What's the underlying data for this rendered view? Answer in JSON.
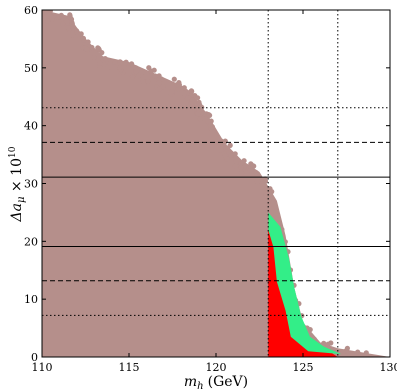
{
  "chart_data": {
    "type": "scatter",
    "title": "",
    "xlabel_main": "m",
    "xlabel_sub": "h",
    "xlabel_unit": "(GeV)",
    "ylabel_main": "Δa",
    "ylabel_sub": "μ",
    "ylabel_tail": " × 10",
    "ylabel_exp": "10",
    "xlim": [
      110,
      130
    ],
    "ylim": [
      0,
      60
    ],
    "xticks": [
      "110",
      "115",
      "120",
      "125",
      "130"
    ],
    "yticks": [
      "0",
      "10",
      "20",
      "30",
      "40",
      "50",
      "60"
    ],
    "grid": false,
    "colors": {
      "all_points": "#b58f8b",
      "region_red": "#ff0000",
      "region_green": "#33ee88",
      "lines": "#000000"
    },
    "series": [
      {
        "color": "#b58f8b",
        "envelope": [
          [
            110,
            60
          ],
          [
            111.5,
            59
          ],
          [
            112.5,
            55
          ],
          [
            113.5,
            52
          ],
          [
            115,
            51
          ],
          [
            116.5,
            49
          ],
          [
            118,
            47
          ],
          [
            118.5,
            46
          ],
          [
            119.5,
            42
          ],
          [
            120.5,
            37
          ],
          [
            121.5,
            34
          ],
          [
            122.5,
            32
          ],
          [
            123.5,
            27
          ],
          [
            124,
            21
          ],
          [
            124.5,
            12
          ],
          [
            125,
            6
          ],
          [
            126,
            2.5
          ],
          [
            127,
            1.5
          ],
          [
            129,
            0.5
          ],
          [
            130,
            0
          ]
        ]
      },
      {
        "color": "#ff0000",
        "region": [
          [
            123.0,
            25
          ],
          [
            123.6,
            22
          ],
          [
            124.0,
            16
          ],
          [
            124.3,
            10
          ],
          [
            124.8,
            5
          ],
          [
            125.5,
            3
          ],
          [
            126.5,
            1
          ],
          [
            127.0,
            0
          ],
          [
            123.0,
            0
          ]
        ]
      },
      {
        "color": "#33ee88",
        "region": [
          [
            123.0,
            25
          ],
          [
            123.7,
            22.5
          ],
          [
            124.2,
            17
          ],
          [
            124.5,
            12
          ],
          [
            124.9,
            7
          ],
          [
            125.4,
            3.5
          ],
          [
            126.2,
            1.8
          ],
          [
            127.2,
            0.5
          ],
          [
            125.3,
            1
          ],
          [
            124.3,
            3.5
          ],
          [
            124.0,
            8
          ],
          [
            123.5,
            13
          ],
          [
            123.3,
            19
          ],
          [
            123.0,
            22
          ]
        ]
      }
    ],
    "horizontal_lines": [
      {
        "y": 43.1,
        "style": "dotted"
      },
      {
        "y": 37.1,
        "style": "dashed"
      },
      {
        "y": 31.1,
        "style": "solid"
      },
      {
        "y": 19.1,
        "style": "solid"
      },
      {
        "y": 13.2,
        "style": "dashed"
      },
      {
        "y": 7.2,
        "style": "dotted"
      }
    ],
    "vertical_lines": [
      {
        "x": 123,
        "style": "dotted"
      },
      {
        "x": 127,
        "style": "dotted"
      }
    ]
  }
}
